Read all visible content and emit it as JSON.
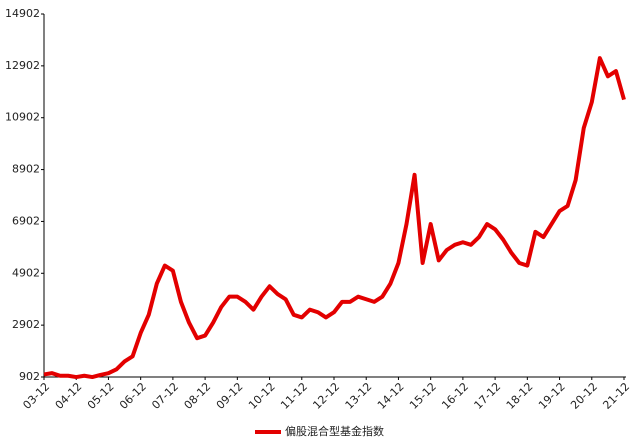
{
  "chart_data": {
    "type": "line",
    "categories": [
      "03-12",
      null,
      null,
      null,
      "04-12",
      null,
      null,
      null,
      "05-12",
      null,
      null,
      null,
      "06-12",
      null,
      null,
      null,
      "07-12",
      null,
      null,
      null,
      "08-12",
      null,
      null,
      null,
      "09-12",
      null,
      null,
      null,
      "10-12",
      null,
      null,
      null,
      "11-12",
      null,
      null,
      null,
      "12-12",
      null,
      null,
      null,
      "13-12",
      null,
      null,
      null,
      "14-12",
      null,
      null,
      null,
      "15-12",
      null,
      null,
      null,
      "16-12",
      null,
      null,
      null,
      "17-12",
      null,
      null,
      null,
      "18-12",
      null,
      null,
      null,
      "19-12",
      null,
      null,
      null,
      "20-12",
      null,
      null,
      null,
      "21-12"
    ],
    "series": [
      {
        "name": "偏股混合型基金指数",
        "color": "#e30000",
        "values": [
          1000,
          1050,
          950,
          950,
          900,
          950,
          900,
          980,
          1050,
          1200,
          1500,
          1700,
          2600,
          3300,
          4500,
          5200,
          5000,
          3800,
          3000,
          2400,
          2500,
          3000,
          3600,
          4000,
          4000,
          3800,
          3500,
          4000,
          4400,
          4100,
          3900,
          3300,
          3200,
          3500,
          3400,
          3200,
          3400,
          3800,
          3800,
          4000,
          3900,
          3800,
          4000,
          4500,
          5300,
          6800,
          8700,
          5300,
          6800,
          5400,
          5800,
          6000,
          6100,
          6000,
          6300,
          6800,
          6600,
          6200,
          5700,
          5300,
          5200,
          6500,
          6300,
          6800,
          7300,
          7500,
          8500,
          10500,
          11500,
          13200,
          12500,
          12700,
          11600
        ]
      }
    ],
    "ylim": [
      902,
      14902
    ],
    "yticks": [
      902,
      2902,
      4902,
      6902,
      8902,
      10902,
      12902,
      14902
    ],
    "grid": false,
    "legend": "bottom"
  }
}
